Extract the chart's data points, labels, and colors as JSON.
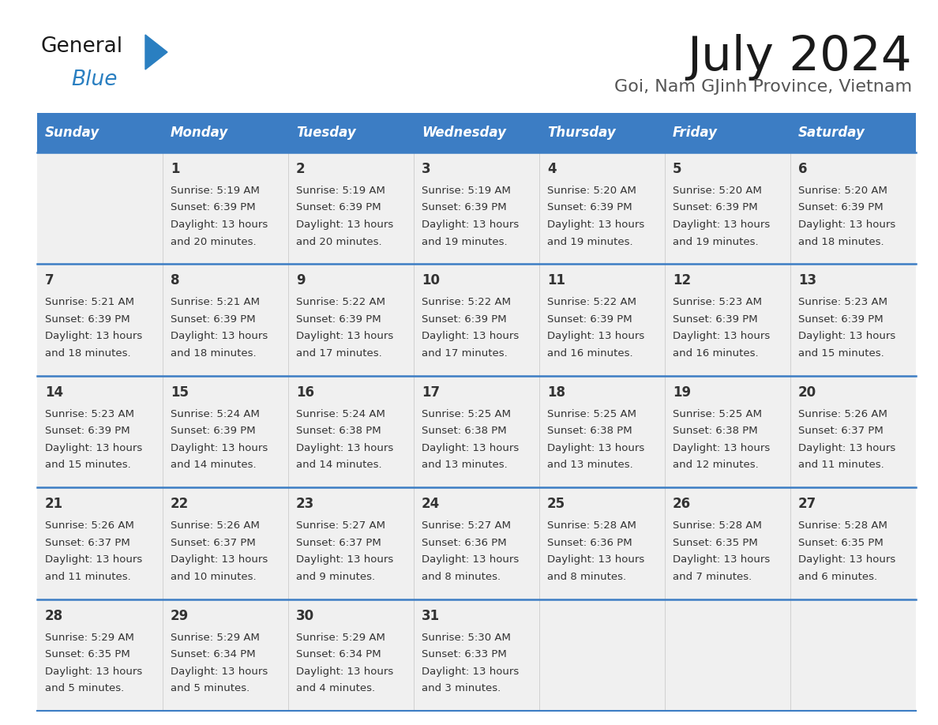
{
  "title": "July 2024",
  "subtitle": "Goi, Nam GJinh Province, Vietnam",
  "days_of_week": [
    "Sunday",
    "Monday",
    "Tuesday",
    "Wednesday",
    "Thursday",
    "Friday",
    "Saturday"
  ],
  "header_bg": "#3c7dc4",
  "header_text": "#ffffff",
  "row_bg": "#f0f0f0",
  "separator_color": "#3c7dc4",
  "text_color": "#333333",
  "calendar_data": [
    [
      {
        "day": "",
        "sunrise": "",
        "sunset": "",
        "daylight": ""
      },
      {
        "day": "1",
        "sunrise": "5:19 AM",
        "sunset": "6:39 PM",
        "daylight": "13 hours\nand 20 minutes."
      },
      {
        "day": "2",
        "sunrise": "5:19 AM",
        "sunset": "6:39 PM",
        "daylight": "13 hours\nand 20 minutes."
      },
      {
        "day": "3",
        "sunrise": "5:19 AM",
        "sunset": "6:39 PM",
        "daylight": "13 hours\nand 19 minutes."
      },
      {
        "day": "4",
        "sunrise": "5:20 AM",
        "sunset": "6:39 PM",
        "daylight": "13 hours\nand 19 minutes."
      },
      {
        "day": "5",
        "sunrise": "5:20 AM",
        "sunset": "6:39 PM",
        "daylight": "13 hours\nand 19 minutes."
      },
      {
        "day": "6",
        "sunrise": "5:20 AM",
        "sunset": "6:39 PM",
        "daylight": "13 hours\nand 18 minutes."
      }
    ],
    [
      {
        "day": "7",
        "sunrise": "5:21 AM",
        "sunset": "6:39 PM",
        "daylight": "13 hours\nand 18 minutes."
      },
      {
        "day": "8",
        "sunrise": "5:21 AM",
        "sunset": "6:39 PM",
        "daylight": "13 hours\nand 18 minutes."
      },
      {
        "day": "9",
        "sunrise": "5:22 AM",
        "sunset": "6:39 PM",
        "daylight": "13 hours\nand 17 minutes."
      },
      {
        "day": "10",
        "sunrise": "5:22 AM",
        "sunset": "6:39 PM",
        "daylight": "13 hours\nand 17 minutes."
      },
      {
        "day": "11",
        "sunrise": "5:22 AM",
        "sunset": "6:39 PM",
        "daylight": "13 hours\nand 16 minutes."
      },
      {
        "day": "12",
        "sunrise": "5:23 AM",
        "sunset": "6:39 PM",
        "daylight": "13 hours\nand 16 minutes."
      },
      {
        "day": "13",
        "sunrise": "5:23 AM",
        "sunset": "6:39 PM",
        "daylight": "13 hours\nand 15 minutes."
      }
    ],
    [
      {
        "day": "14",
        "sunrise": "5:23 AM",
        "sunset": "6:39 PM",
        "daylight": "13 hours\nand 15 minutes."
      },
      {
        "day": "15",
        "sunrise": "5:24 AM",
        "sunset": "6:39 PM",
        "daylight": "13 hours\nand 14 minutes."
      },
      {
        "day": "16",
        "sunrise": "5:24 AM",
        "sunset": "6:38 PM",
        "daylight": "13 hours\nand 14 minutes."
      },
      {
        "day": "17",
        "sunrise": "5:25 AM",
        "sunset": "6:38 PM",
        "daylight": "13 hours\nand 13 minutes."
      },
      {
        "day": "18",
        "sunrise": "5:25 AM",
        "sunset": "6:38 PM",
        "daylight": "13 hours\nand 13 minutes."
      },
      {
        "day": "19",
        "sunrise": "5:25 AM",
        "sunset": "6:38 PM",
        "daylight": "13 hours\nand 12 minutes."
      },
      {
        "day": "20",
        "sunrise": "5:26 AM",
        "sunset": "6:37 PM",
        "daylight": "13 hours\nand 11 minutes."
      }
    ],
    [
      {
        "day": "21",
        "sunrise": "5:26 AM",
        "sunset": "6:37 PM",
        "daylight": "13 hours\nand 11 minutes."
      },
      {
        "day": "22",
        "sunrise": "5:26 AM",
        "sunset": "6:37 PM",
        "daylight": "13 hours\nand 10 minutes."
      },
      {
        "day": "23",
        "sunrise": "5:27 AM",
        "sunset": "6:37 PM",
        "daylight": "13 hours\nand 9 minutes."
      },
      {
        "day": "24",
        "sunrise": "5:27 AM",
        "sunset": "6:36 PM",
        "daylight": "13 hours\nand 8 minutes."
      },
      {
        "day": "25",
        "sunrise": "5:28 AM",
        "sunset": "6:36 PM",
        "daylight": "13 hours\nand 8 minutes."
      },
      {
        "day": "26",
        "sunrise": "5:28 AM",
        "sunset": "6:35 PM",
        "daylight": "13 hours\nand 7 minutes."
      },
      {
        "day": "27",
        "sunrise": "5:28 AM",
        "sunset": "6:35 PM",
        "daylight": "13 hours\nand 6 minutes."
      }
    ],
    [
      {
        "day": "28",
        "sunrise": "5:29 AM",
        "sunset": "6:35 PM",
        "daylight": "13 hours\nand 5 minutes."
      },
      {
        "day": "29",
        "sunrise": "5:29 AM",
        "sunset": "6:34 PM",
        "daylight": "13 hours\nand 5 minutes."
      },
      {
        "day": "30",
        "sunrise": "5:29 AM",
        "sunset": "6:34 PM",
        "daylight": "13 hours\nand 4 minutes."
      },
      {
        "day": "31",
        "sunrise": "5:30 AM",
        "sunset": "6:33 PM",
        "daylight": "13 hours\nand 3 minutes."
      },
      {
        "day": "",
        "sunrise": "",
        "sunset": "",
        "daylight": ""
      },
      {
        "day": "",
        "sunrise": "",
        "sunset": "",
        "daylight": ""
      },
      {
        "day": "",
        "sunrise": "",
        "sunset": "",
        "daylight": ""
      }
    ]
  ],
  "logo_color_general": "#1a1a1a",
  "logo_color_blue": "#2a7fc1",
  "logo_triangle_color": "#2a7fc1",
  "title_color": "#1a1a1a",
  "subtitle_color": "#555555"
}
